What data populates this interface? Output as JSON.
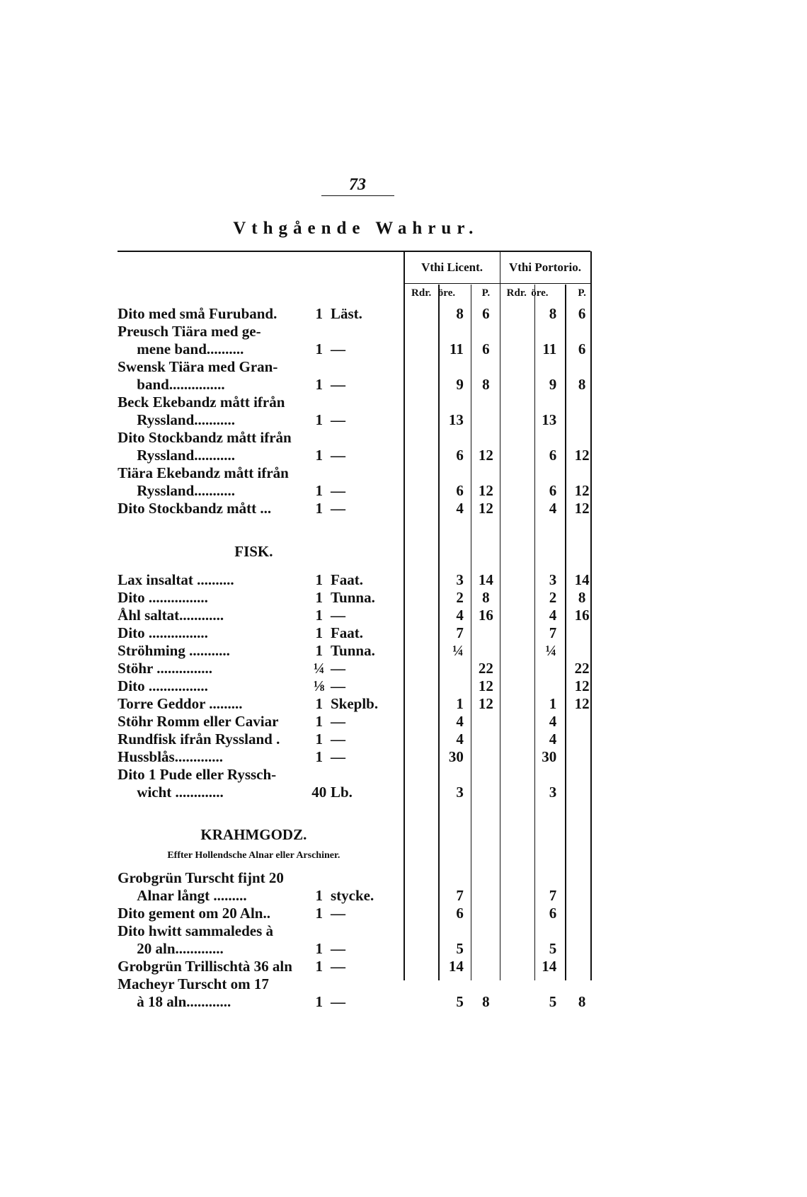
{
  "page_number": "73",
  "title": "Vthgående Wahrur.",
  "columns": {
    "licent": "Vthi Licent.",
    "portorio": "Vthi Portorio.",
    "units": [
      "Rdr.",
      "öre.",
      "P.",
      "Rdr.",
      "öre.",
      "P."
    ]
  },
  "items": [
    {
      "lines": [
        "Dito med små Furuband."
      ],
      "qty": "1",
      "unit": "Läst.",
      "licent": [
        null,
        "8",
        "6"
      ],
      "portorio": [
        null,
        "8",
        "6"
      ]
    },
    {
      "lines": [
        "Preusch Tiära med ge-",
        "mene band.........."
      ],
      "qty": "1",
      "unit": "—",
      "licent": [
        null,
        "11",
        "6"
      ],
      "portorio": [
        null,
        "11",
        "6"
      ]
    },
    {
      "lines": [
        "Swensk Tiära med Gran-",
        "band..............."
      ],
      "qty": "1",
      "unit": "—",
      "licent": [
        null,
        "9",
        "8"
      ],
      "portorio": [
        null,
        "9",
        "8"
      ]
    },
    {
      "lines": [
        "Beck Ekebandz mått ifrån",
        "Ryssland..........."
      ],
      "qty": "1",
      "unit": "—",
      "licent": [
        null,
        "13",
        null
      ],
      "portorio": [
        null,
        "13",
        null
      ]
    },
    {
      "lines": [
        "Dito Stockbandz mått ifrån",
        "Ryssland..........."
      ],
      "qty": "1",
      "unit": "—",
      "licent": [
        null,
        "6",
        "12"
      ],
      "portorio": [
        null,
        "6",
        "12"
      ]
    },
    {
      "lines": [
        "Tiära Ekebandz mått ifrån",
        "Ryssland..........."
      ],
      "qty": "1",
      "unit": "—",
      "licent": [
        null,
        "6",
        "12"
      ],
      "portorio": [
        null,
        "6",
        "12"
      ]
    },
    {
      "lines": [
        "Dito Stockbandz mått ..."
      ],
      "qty": "1",
      "unit": "—",
      "licent": [
        null,
        "4",
        "12"
      ],
      "portorio": [
        null,
        "4",
        "12"
      ]
    },
    {
      "heading": "FISK."
    },
    {
      "lines": [
        "Lax insaltat .........."
      ],
      "qty": "1",
      "unit": "Faat.",
      "licent": [
        null,
        "3",
        "14"
      ],
      "portorio": [
        null,
        "3",
        "14"
      ]
    },
    {
      "lines": [
        "Dito ................"
      ],
      "qty": "1",
      "unit": "Tunna.",
      "licent": [
        null,
        "2",
        "8"
      ],
      "portorio": [
        null,
        "2",
        "8"
      ]
    },
    {
      "lines": [
        "Åhl saltat............"
      ],
      "qty": "1",
      "unit": "—",
      "licent": [
        null,
        "4",
        "16"
      ],
      "portorio": [
        null,
        "4",
        "16"
      ]
    },
    {
      "lines": [
        "Dito ................"
      ],
      "qty": "1",
      "unit": "Faat.",
      "licent": [
        null,
        "7",
        null
      ],
      "portorio": [
        null,
        "7",
        null
      ]
    },
    {
      "lines": [
        "Ströhming ..........."
      ],
      "qty": "1",
      "unit": "Tunna.",
      "licent": [
        null,
        "¼",
        null
      ],
      "portorio": [
        null,
        "¼",
        null
      ]
    },
    {
      "lines": [
        "Stöhr ..............."
      ],
      "qty": "¼",
      "unit": "—",
      "licent": [
        null,
        null,
        "22"
      ],
      "portorio": [
        null,
        null,
        "22"
      ]
    },
    {
      "lines": [
        "Dito ................"
      ],
      "qty": "⅛",
      "unit": "—",
      "licent": [
        null,
        null,
        "12"
      ],
      "portorio": [
        null,
        null,
        "12"
      ]
    },
    {
      "lines": [
        "Torre Geddor ........."
      ],
      "qty": "1",
      "unit": "Skeplb.",
      "licent": [
        null,
        "1",
        "12"
      ],
      "portorio": [
        null,
        "1",
        "12"
      ]
    },
    {
      "lines": [
        "Stöhr Romm eller Caviar"
      ],
      "qty": "1",
      "unit": "—",
      "licent": [
        null,
        "4",
        null
      ],
      "portorio": [
        null,
        "4",
        null
      ]
    },
    {
      "lines": [
        "Rundfisk ifrån Ryssland ."
      ],
      "qty": "1",
      "unit": "—",
      "licent": [
        null,
        "4",
        null
      ],
      "portorio": [
        null,
        "4",
        null
      ]
    },
    {
      "lines": [
        "Hussblås............."
      ],
      "qty": "1",
      "unit": "—",
      "licent": [
        null,
        "30",
        null
      ],
      "portorio": [
        null,
        "30",
        null
      ]
    },
    {
      "lines": [
        "Dito 1 Pude eller Ryssch-",
        "wicht ............."
      ],
      "qty": "40",
      "unit": "Lb.",
      "licent": [
        null,
        "3",
        null
      ],
      "portorio": [
        null,
        "3",
        null
      ]
    },
    {
      "heading": "KRAHMGODZ.",
      "subheading": "Effter Hollendsche Alnar eller Arschiner."
    },
    {
      "lines": [
        "Grobgrün Turscht fijnt 20",
        "Alnar långt ........."
      ],
      "qty": "1",
      "unit": "stycke.",
      "licent": [
        null,
        "7",
        null
      ],
      "portorio": [
        null,
        "7",
        null
      ]
    },
    {
      "lines": [
        "Dito gement om 20 Aln.."
      ],
      "qty": "1",
      "unit": "—",
      "licent": [
        null,
        "6",
        null
      ],
      "portorio": [
        null,
        "6",
        null
      ]
    },
    {
      "lines": [
        "Dito hwitt sammaledes à",
        "20 aln............."
      ],
      "qty": "1",
      "unit": "—",
      "licent": [
        null,
        "5",
        null
      ],
      "portorio": [
        null,
        "5",
        null
      ]
    },
    {
      "lines": [
        "Grobgrün Trillischtà 36 aln"
      ],
      "qty": "1",
      "unit": "—",
      "licent": [
        null,
        "14",
        null
      ],
      "portorio": [
        null,
        "14",
        null
      ]
    },
    {
      "lines": [
        "Macheyr Turscht om 17",
        "à 18 aln............"
      ],
      "qty": "1",
      "unit": "—",
      "licent": [
        null,
        "5",
        "8"
      ],
      "portorio": [
        null,
        "5",
        "8"
      ]
    }
  ]
}
